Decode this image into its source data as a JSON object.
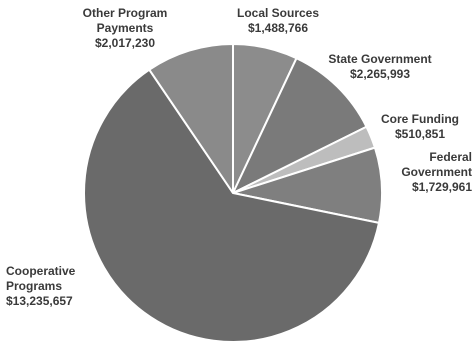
{
  "chart_data": {
    "type": "pie",
    "title": "",
    "slices": [
      {
        "label": "Local Sources",
        "value_text": "$1,488,766",
        "value": 1488766,
        "color": "#8c8c8c"
      },
      {
        "label": "State Government",
        "value_text": "$2,265,993",
        "value": 2265993,
        "color": "#7a7a7a"
      },
      {
        "label": "Core Funding",
        "value_text": "$510,851",
        "value": 510851,
        "color": "#bdbdbd"
      },
      {
        "label": "Federal Government",
        "value_text": "$1,729,961",
        "value": 1729961,
        "color": "#7f7f7f"
      },
      {
        "label": "Cooperative Programs",
        "value_text": "$13,235,657",
        "value": 13235657,
        "color": "#6a6a6a"
      },
      {
        "label": "Other Program Payments",
        "value_text": "$2,017,230",
        "value": 2017230,
        "color": "#8a8a8a"
      }
    ],
    "legend": "none",
    "start": "12 o'clock",
    "direction": "clockwise",
    "slice_border_color": "#ffffff"
  }
}
